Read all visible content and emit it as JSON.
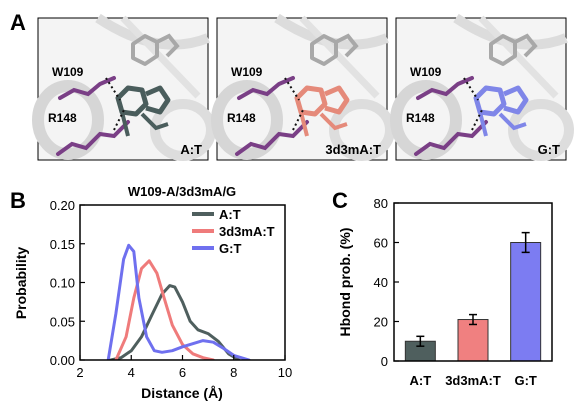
{
  "panel_letters": [
    "A",
    "B",
    "C"
  ],
  "panel_a": {
    "residue_labels": [
      "W109",
      "R148"
    ],
    "images": [
      {
        "pair_label": "A:T",
        "ligand_color": "#4a5d5c"
      },
      {
        "pair_label": "3d3mA:T",
        "ligand_color": "#e58a7a"
      },
      {
        "pair_label": "G:T",
        "ligand_color": "#7f86e8"
      }
    ],
    "residue_color": "#7a3f86"
  },
  "chart_data": [
    {
      "type": "line",
      "title": "W109-A/3d3mA/G",
      "xlabel": "Distance (Å)",
      "ylabel": "Probability",
      "xlim": [
        2,
        10
      ],
      "ylim": [
        0,
        0.2
      ],
      "xticks": [
        "2",
        "4",
        "6",
        "8",
        "10"
      ],
      "yticks": [
        "0.00",
        "0.05",
        "0.10",
        "0.15",
        "0.20"
      ],
      "legend_position": "top-right",
      "series": [
        {
          "name": "A:T",
          "color": "#4f5f5e",
          "x": [
            3.2,
            3.6,
            4.0,
            4.4,
            4.8,
            5.2,
            5.5,
            5.7,
            6.0,
            6.3,
            6.6,
            7.0,
            7.4,
            7.8,
            8.2
          ],
          "y": [
            0.0,
            0.003,
            0.012,
            0.03,
            0.058,
            0.085,
            0.096,
            0.094,
            0.075,
            0.05,
            0.039,
            0.034,
            0.024,
            0.008,
            0.0
          ]
        },
        {
          "name": "3d3mA:T",
          "color": "#ef7b7b",
          "x": [
            3.4,
            3.8,
            4.1,
            4.4,
            4.7,
            5.0,
            5.3,
            5.6,
            6.0,
            6.4,
            6.8,
            7.2
          ],
          "y": [
            0.0,
            0.03,
            0.08,
            0.118,
            0.128,
            0.112,
            0.078,
            0.045,
            0.02,
            0.008,
            0.003,
            0.0
          ]
        },
        {
          "name": "G:T",
          "color": "#6f70ef",
          "x": [
            3.1,
            3.4,
            3.7,
            3.9,
            4.1,
            4.3,
            4.6,
            4.9,
            5.2,
            5.6,
            6.0,
            6.4,
            6.8,
            7.2,
            7.6,
            8.0,
            8.6
          ],
          "y": [
            0.0,
            0.06,
            0.13,
            0.148,
            0.14,
            0.08,
            0.03,
            0.012,
            0.01,
            0.012,
            0.017,
            0.021,
            0.025,
            0.023,
            0.015,
            0.006,
            0.0
          ]
        }
      ]
    },
    {
      "type": "bar",
      "xlabel": "",
      "ylabel": "Hbond prob. (%)",
      "ylim": [
        0,
        80
      ],
      "yticks": [
        "0",
        "20",
        "40",
        "60",
        "80"
      ],
      "categories": [
        "A:T",
        "3d3mA:T",
        "G:T"
      ],
      "values": [
        10,
        21,
        60
      ],
      "errors": [
        2.5,
        2.5,
        5
      ],
      "colors": [
        "#4f5f5e",
        "#f08080",
        "#7c7cf2"
      ]
    }
  ]
}
